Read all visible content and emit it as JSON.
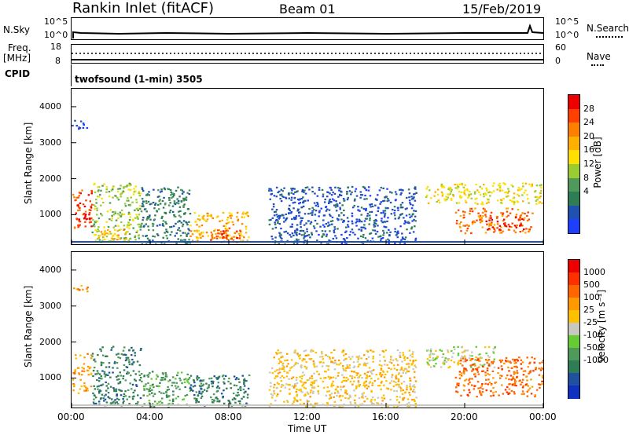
{
  "header": {
    "station": "Rankin Inlet (fitACF)",
    "beam": "Beam 01",
    "date": "15/Feb/2019"
  },
  "strip": {
    "nsky_label": "N.Sky",
    "nsky_ticks": [
      "10^5",
      "10^0"
    ],
    "nsearch_label": "N.Search",
    "nsearch_ticks": [
      "10^5",
      "10^0"
    ],
    "freq_label_1": "Freq.",
    "freq_label_2": "[MHz]",
    "freq_ticks": [
      "18",
      "8"
    ],
    "nave_label": "Nave",
    "nave_ticks": [
      "60",
      "0"
    ],
    "cpid_label": "CPID",
    "cpid_value": "twofsound (1-min) 3505"
  },
  "chart_data": [
    {
      "type": "heatmap",
      "title": "",
      "xlabel": "",
      "ylabel": "Slant Range [km]",
      "x_ticks": [
        "00:00",
        "04:00",
        "08:00",
        "12:00",
        "16:00",
        "20:00",
        "00:00"
      ],
      "xlim_hours": [
        0,
        24
      ],
      "y_ticks": [
        1000,
        2000,
        3000,
        4000
      ],
      "ylim": [
        180,
        4500
      ],
      "colorbar": {
        "label": "Power [dB]",
        "ticks": [
          "4",
          "8",
          "12",
          "16",
          "20",
          "24",
          "28"
        ],
        "colors": [
          "#1f3fff",
          "#2050b0",
          "#2e7d55",
          "#4f9a5a",
          "#9acd32",
          "#ffe000",
          "#ffb000",
          "#ff8000",
          "#ff4000",
          "#ee0000"
        ]
      },
      "regions": [
        {
          "t0": 0.0,
          "t1": 1.0,
          "r0": 600,
          "r1": 1700,
          "level": 8
        },
        {
          "t0": 0.2,
          "t1": 0.9,
          "r0": 700,
          "r1": 1050,
          "level": 9
        },
        {
          "t0": 1.0,
          "t1": 3.5,
          "r0": 250,
          "r1": 1900,
          "level": 4
        },
        {
          "t0": 1.3,
          "t1": 2.8,
          "r0": 250,
          "r1": 600,
          "level": 6
        },
        {
          "t0": 3.5,
          "t1": 6.0,
          "r0": 200,
          "r1": 1800,
          "level": 2
        },
        {
          "t0": 6.0,
          "t1": 9.0,
          "r0": 250,
          "r1": 1100,
          "level": 6
        },
        {
          "t0": 7.0,
          "t1": 8.6,
          "r0": 300,
          "r1": 700,
          "level": 8
        },
        {
          "t0": 10.0,
          "t1": 17.5,
          "r0": 200,
          "r1": 1800,
          "level": 1
        },
        {
          "t0": 18.0,
          "t1": 24.0,
          "r0": 1300,
          "r1": 1900,
          "level": 5
        },
        {
          "t0": 19.5,
          "t1": 23.5,
          "r0": 500,
          "r1": 1200,
          "level": 7
        },
        {
          "t0": 21.0,
          "t1": 23.0,
          "r0": 600,
          "r1": 950,
          "level": 9
        },
        {
          "t0": 0.0,
          "t1": 0.8,
          "r0": 3400,
          "r1": 3650,
          "level": 0
        }
      ]
    },
    {
      "type": "heatmap",
      "title": "",
      "xlabel": "Time UT",
      "ylabel": "Slant Range [km]",
      "x_ticks": [
        "00:00",
        "04:00",
        "08:00",
        "12:00",
        "16:00",
        "20:00",
        "00:00"
      ],
      "xlim_hours": [
        0,
        24
      ],
      "y_ticks": [
        1000,
        2000,
        3000,
        4000
      ],
      "ylim": [
        180,
        4500
      ],
      "colorbar": {
        "label": "Velocity [m s⁻¹]",
        "ticks": [
          "1000",
          "500",
          "100",
          "25",
          "-25",
          "-100",
          "-500",
          "-1000"
        ],
        "colors": [
          "#1030c0",
          "#2050a0",
          "#2e7d55",
          "#4f9a5a",
          "#66cc33",
          "#c8c8c0",
          "#ffc000",
          "#ff9900",
          "#ff6600",
          "#ff3000",
          "#ee0000"
        ]
      },
      "regions": [
        {
          "t0": 0.0,
          "t1": 1.0,
          "r0": 600,
          "r1": 1700,
          "level": 7
        },
        {
          "t0": 1.0,
          "t1": 3.5,
          "r0": 250,
          "r1": 1900,
          "level": 2
        },
        {
          "t0": 3.5,
          "t1": 6.0,
          "r0": 200,
          "r1": 1200,
          "level": 3
        },
        {
          "t0": 6.0,
          "t1": 9.0,
          "r0": 250,
          "r1": 1100,
          "level": 2
        },
        {
          "t0": 10.0,
          "t1": 17.5,
          "r0": 200,
          "r1": 1800,
          "level": 6
        },
        {
          "t0": 18.0,
          "t1": 21.5,
          "r0": 1300,
          "r1": 1900,
          "level": 5
        },
        {
          "t0": 19.5,
          "t1": 24.0,
          "r0": 500,
          "r1": 1600,
          "level": 8
        },
        {
          "t0": 0.0,
          "t1": 0.8,
          "r0": 3400,
          "r1": 3650,
          "level": 7
        }
      ]
    }
  ]
}
